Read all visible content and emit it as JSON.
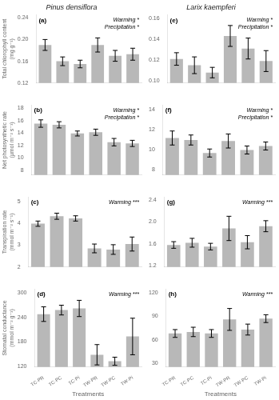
{
  "chart_data": [
    {
      "type": "bar",
      "title": "Pinus densiflora",
      "ylabel": "Total chlorophyll content (mg g⁻¹)",
      "annotations": [
        "(a)",
        "Warming *\nPrecipitation *"
      ],
      "categories": [
        null,
        null,
        null,
        null,
        null,
        null
      ],
      "values": [
        0.19,
        0.16,
        0.155,
        0.19,
        0.17,
        0.173
      ],
      "errors": [
        0.01,
        0.008,
        0.007,
        0.013,
        0.01,
        0.011
      ],
      "color": "#b8b8b8",
      "grid": false,
      "ylim": [
        0.12,
        0.245
      ],
      "yticks": [
        0.12,
        0.16,
        {
          "value": 0.2,
          "label": "0.20"
        },
        0.24
      ]
    },
    {
      "type": "bar",
      "ylabel": "Net photosynthetic rate (µmol m⁻² s⁻¹)",
      "annotations": [
        "(b)",
        "Warming *\nPrecipitation *"
      ],
      "categories": [
        null,
        null,
        null,
        null,
        null,
        null
      ],
      "values": [
        15.5,
        15.3,
        13.9,
        14.1,
        12.5,
        12.3
      ],
      "errors": [
        0.6,
        0.5,
        0.4,
        0.5,
        0.6,
        0.5
      ],
      "color": "#b8b8b8",
      "grid": false,
      "ylim": [
        7.2,
        18.5
      ],
      "yticks": [
        8,
        10,
        12,
        14,
        16,
        18
      ]
    },
    {
      "type": "bar",
      "ylabel": "Transpiration rate (mmol m⁻² s⁻¹)",
      "annotations": [
        "(c)",
        "Warming ***"
      ],
      "categories": [
        null,
        null,
        null,
        null,
        null,
        null
      ],
      "values": [
        3.98,
        4.32,
        4.22,
        2.85,
        2.8,
        3.05
      ],
      "errors": [
        0.12,
        0.14,
        0.12,
        0.2,
        0.22,
        0.32
      ],
      "color": "#b8b8b8",
      "grid": false,
      "ylim": [
        2.0,
        5.2
      ],
      "yticks": [
        2,
        3,
        4,
        5
      ]
    },
    {
      "type": "bar",
      "ylabel": "Stomatal conductance (mmol m⁻² g⁻¹)",
      "xlabel": "Treatments",
      "annotations": [
        "(d)",
        "Warming ***"
      ],
      "categories": [
        "TC·PR",
        "TC·PC",
        "TC·Pi",
        "TW·PR",
        "TW·PC",
        "TW·Pi"
      ],
      "values": [
        248,
        258,
        262,
        148,
        132,
        193
      ],
      "errors": [
        18,
        12,
        20,
        25,
        10,
        45
      ],
      "color": "#b8b8b8",
      "grid": false,
      "ylim": [
        118,
        310
      ],
      "yticks": [
        120,
        180,
        240,
        300
      ]
    },
    {
      "type": "bar",
      "title": "Larix kaempferi",
      "annotations": [
        "(e)",
        "Warming *\nPrecipitation *"
      ],
      "categories": [
        null,
        null,
        null,
        null,
        null,
        null
      ],
      "values": [
        0.121,
        0.115,
        0.108,
        0.143,
        0.131,
        0.119
      ],
      "errors": [
        0.006,
        0.008,
        0.005,
        0.01,
        0.01,
        0.01
      ],
      "color": "#b8b8b8",
      "grid": false,
      "ylim": [
        0.098,
        0.163
      ],
      "yticks": [
        {
          "value": 0.1,
          "label": "0.10"
        },
        0.12,
        0.14,
        0.16
      ]
    },
    {
      "type": "bar",
      "annotations": [
        "(f)",
        "Warming *\nPrecipitation *"
      ],
      "categories": [
        null,
        null,
        null,
        null,
        null,
        null
      ],
      "values": [
        11.2,
        11.0,
        9.7,
        10.9,
        10.0,
        10.4
      ],
      "errors": [
        0.7,
        0.5,
        0.4,
        0.7,
        0.4,
        0.4
      ],
      "color": "#b8b8b8",
      "grid": false,
      "ylim": [
        7.5,
        14.5
      ],
      "yticks": [
        8,
        10,
        12,
        14
      ]
    },
    {
      "type": "bar",
      "annotations": [
        "(g)",
        "Warming ***"
      ],
      "categories": [
        null,
        null,
        null,
        null,
        null,
        null
      ],
      "values": [
        1.58,
        1.62,
        1.55,
        1.88,
        1.63,
        1.92
      ],
      "errors": [
        0.06,
        0.08,
        0.06,
        0.22,
        0.12,
        0.1
      ],
      "color": "#b8b8b8",
      "grid": false,
      "ylim": [
        1.18,
        2.45
      ],
      "yticks": [
        1.2,
        1.6,
        {
          "value": 2,
          "label": "2.0"
        },
        2.4
      ]
    },
    {
      "type": "bar",
      "xlabel": "Treatments",
      "annotations": [
        "(h)",
        "Warming ***"
      ],
      "categories": [
        "TC·PR",
        "TC·PC",
        "TC·Pi",
        "TW·PR",
        "TW·PC",
        "TW·Pi"
      ],
      "values": [
        68,
        70,
        68,
        86,
        73,
        87
      ],
      "errors": [
        5,
        6,
        5,
        14,
        7,
        5
      ],
      "color": "#b8b8b8",
      "grid": false,
      "ylim": [
        25,
        125
      ],
      "yticks": [
        30,
        60,
        90,
        120
      ]
    }
  ]
}
